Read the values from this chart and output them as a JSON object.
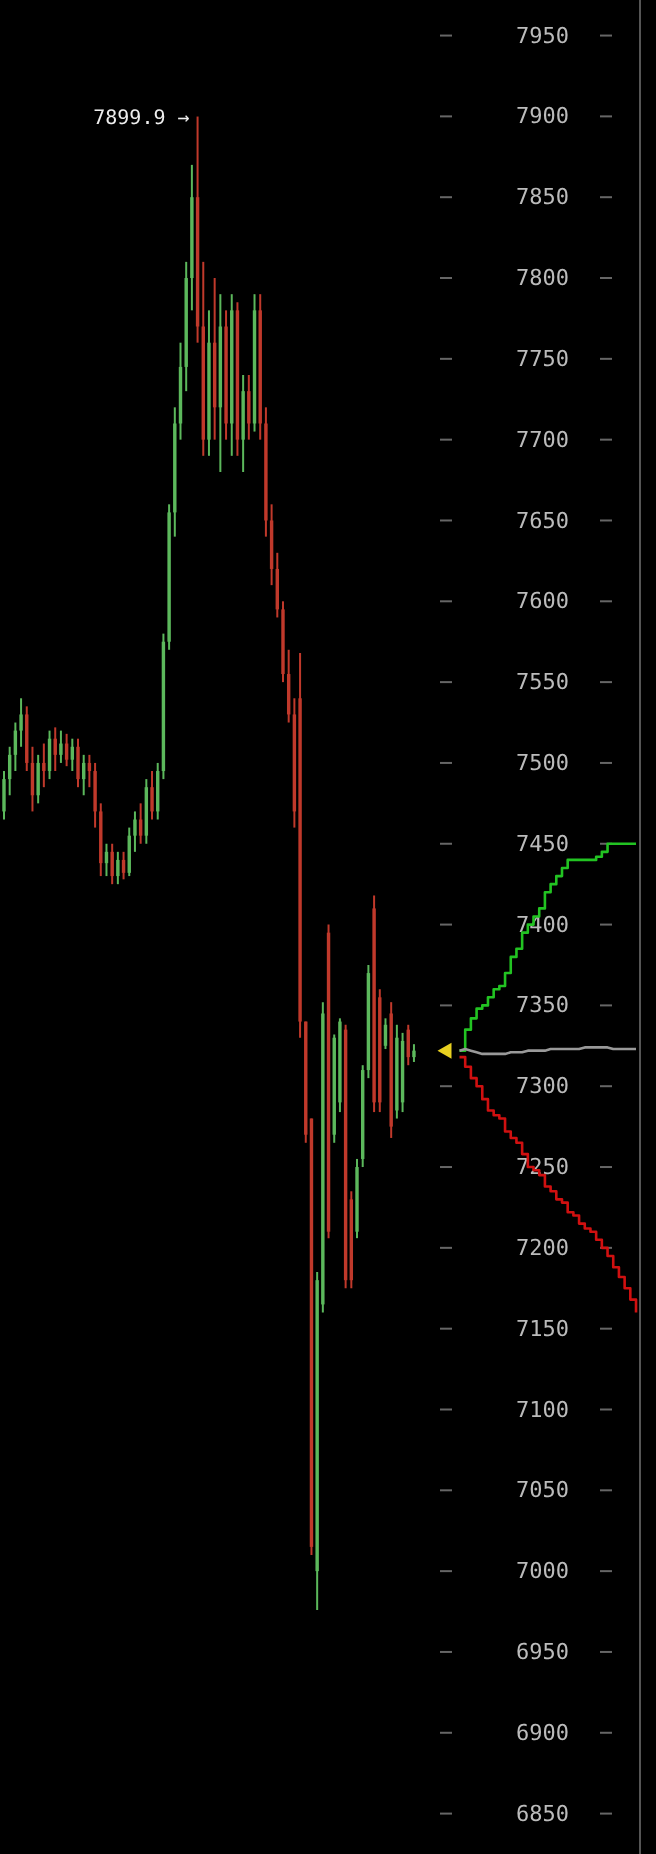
{
  "chart_data": {
    "type": "candlestick",
    "categories": [
      null,
      null,
      null,
      null,
      null,
      null,
      null,
      null,
      null,
      null,
      null,
      null,
      null,
      null,
      null,
      null,
      null,
      null,
      null,
      null,
      null,
      null,
      null,
      null,
      null,
      null,
      null,
      null,
      null,
      null,
      null,
      null,
      null,
      null,
      null,
      null,
      null,
      null,
      null,
      null,
      null,
      null,
      null,
      null,
      null,
      null,
      null,
      null,
      null,
      null,
      null,
      null,
      null,
      null,
      null,
      null,
      null,
      null,
      null,
      null,
      null,
      null,
      null,
      null,
      null,
      null,
      null,
      null,
      null,
      null,
      null,
      null,
      null,
      null,
      null,
      null,
      null,
      null,
      null,
      null,
      null,
      null,
      null,
      null,
      null,
      null,
      null,
      null,
      null,
      null,
      null,
      null,
      null,
      null,
      null,
      null,
      null,
      null,
      null,
      null,
      null,
      null,
      null,
      null,
      null,
      null,
      null,
      null,
      null,
      null,
      null,
      null
    ],
    "ohlc": [
      [
        7470,
        7495,
        7465,
        7490
      ],
      [
        7490,
        7510,
        7480,
        7505
      ],
      [
        7505,
        7525,
        7495,
        7520
      ],
      [
        7520,
        7540,
        7510,
        7530
      ],
      [
        7530,
        7535,
        7495,
        7500
      ],
      [
        7500,
        7510,
        7470,
        7480
      ],
      [
        7480,
        7505,
        7475,
        7500
      ],
      [
        7500,
        7512,
        7485,
        7495
      ],
      [
        7495,
        7520,
        7490,
        7515
      ],
      [
        7515,
        7522,
        7495,
        7505
      ],
      [
        7505,
        7520,
        7500,
        7512
      ],
      [
        7512,
        7518,
        7498,
        7502
      ],
      [
        7502,
        7515,
        7495,
        7510
      ],
      [
        7510,
        7515,
        7485,
        7490
      ],
      [
        7490,
        7505,
        7480,
        7500
      ],
      [
        7500,
        7505,
        7485,
        7495
      ],
      [
        7495,
        7500,
        7460,
        7470
      ],
      [
        7470,
        7475,
        7430,
        7438
      ],
      [
        7438,
        7450,
        7430,
        7445
      ],
      [
        7445,
        7450,
        7425,
        7430
      ],
      [
        7430,
        7445,
        7425,
        7440
      ],
      [
        7440,
        7445,
        7428,
        7432
      ],
      [
        7432,
        7460,
        7430,
        7455
      ],
      [
        7455,
        7470,
        7445,
        7465
      ],
      [
        7465,
        7475,
        7450,
        7455
      ],
      [
        7455,
        7490,
        7450,
        7485
      ],
      [
        7485,
        7495,
        7465,
        7470
      ],
      [
        7470,
        7500,
        7465,
        7495
      ],
      [
        7495,
        7580,
        7490,
        7575
      ],
      [
        7575,
        7660,
        7570,
        7655
      ],
      [
        7655,
        7720,
        7640,
        7710
      ],
      [
        7710,
        7760,
        7700,
        7745
      ],
      [
        7745,
        7810,
        7730,
        7800
      ],
      [
        7800,
        7870,
        7780,
        7850
      ],
      [
        7850,
        7899.9,
        7760,
        7770
      ],
      [
        7770,
        7810,
        7690,
        7700
      ],
      [
        7700,
        7780,
        7690,
        7760
      ],
      [
        7760,
        7800,
        7700,
        7720
      ],
      [
        7720,
        7790,
        7680,
        7770
      ],
      [
        7770,
        7780,
        7700,
        7710
      ],
      [
        7710,
        7790,
        7690,
        7780
      ],
      [
        7780,
        7785,
        7690,
        7700
      ],
      [
        7700,
        7740,
        7680,
        7730
      ],
      [
        7730,
        7740,
        7700,
        7710
      ],
      [
        7710,
        7790,
        7705,
        7780
      ],
      [
        7780,
        7790,
        7700,
        7710
      ],
      [
        7710,
        7720,
        7640,
        7650
      ],
      [
        7650,
        7660,
        7610,
        7620
      ],
      [
        7620,
        7630,
        7590,
        7595
      ],
      [
        7595,
        7600,
        7550,
        7555
      ],
      [
        7555,
        7570,
        7525,
        7530
      ],
      [
        7530,
        7540,
        7460,
        7470
      ],
      [
        7540,
        7568,
        7330,
        7340
      ],
      [
        7340,
        7340,
        7265,
        7270
      ],
      [
        7280,
        7280,
        7010,
        7015
      ],
      [
        7000,
        7185,
        6976,
        7180
      ],
      [
        7165,
        7352,
        7160,
        7345
      ],
      [
        7395,
        7400,
        7206,
        7210
      ],
      [
        7270,
        7332,
        7265,
        7330
      ],
      [
        7290,
        7342,
        7284,
        7340
      ],
      [
        7335,
        7338,
        7175,
        7180
      ],
      [
        7230,
        7235,
        7175,
        7180
      ],
      [
        7210,
        7255,
        7206,
        7250
      ],
      [
        7255,
        7313,
        7250,
        7310
      ],
      [
        7310,
        7375,
        7305,
        7370
      ],
      [
        7410,
        7418,
        7284,
        7290
      ],
      [
        7355,
        7360,
        7284,
        7290
      ],
      [
        7325,
        7342,
        7323,
        7338
      ],
      [
        7345,
        7352,
        7268,
        7275
      ],
      [
        7285,
        7338,
        7280,
        7330
      ],
      [
        7290,
        7333,
        7284,
        7328
      ],
      [
        7335,
        7338,
        7313,
        7318
      ],
      [
        7318,
        7326,
        7315,
        7322
      ],
      null,
      null,
      null,
      null,
      null,
      null,
      null,
      null,
      null,
      null,
      null,
      null,
      null,
      null,
      null,
      null,
      null,
      null,
      null,
      null,
      null,
      null,
      null,
      null,
      null,
      null,
      null,
      null,
      null,
      null,
      null,
      null,
      null,
      null,
      null,
      null,
      null,
      null,
      null
    ],
    "colors": [
      "#5cb85c",
      "#5cb85c",
      "#5cb85c",
      "#5cb85c",
      "#c0392b",
      "#c0392b",
      "#5cb85c",
      "#c0392b",
      "#5cb85c",
      "#c0392b",
      "#5cb85c",
      "#c0392b",
      "#5cb85c",
      "#c0392b",
      "#5cb85c",
      "#c0392b",
      "#c0392b",
      "#c0392b",
      "#5cb85c",
      "#c0392b",
      "#5cb85c",
      "#c0392b",
      "#5cb85c",
      "#5cb85c",
      "#c0392b",
      "#5cb85c",
      "#c0392b",
      "#5cb85c",
      "#5cb85c",
      "#5cb85c",
      "#5cb85c",
      "#5cb85c",
      "#5cb85c",
      "#5cb85c",
      "#c0392b",
      "#c0392b",
      "#5cb85c",
      "#c0392b",
      "#5cb85c",
      "#c0392b",
      "#5cb85c",
      "#c0392b",
      "#5cb85c",
      "#c0392b",
      "#5cb85c",
      "#c0392b",
      "#c0392b",
      "#c0392b",
      "#c0392b",
      "#c0392b",
      "#c0392b",
      "#c0392b",
      "#c0392b",
      "#c0392b",
      "#c0392b",
      "#5cb85c",
      "#5cb85c",
      "#c0392b",
      "#5cb85c",
      "#5cb85c",
      "#c0392b",
      "#c0392b",
      "#5cb85c",
      "#5cb85c",
      "#5cb85c",
      "#c0392b",
      "#c0392b",
      "#5cb85c",
      "#c0392b",
      "#5cb85c",
      "#5cb85c",
      "#c0392b",
      "#5cb85c",
      null,
      null,
      null,
      null,
      null,
      null,
      null,
      null,
      null,
      null,
      null,
      null,
      null,
      null,
      null,
      null,
      null,
      null,
      null,
      null,
      null,
      null,
      null,
      null,
      null,
      null,
      null,
      null,
      null,
      null,
      null,
      null,
      null,
      null,
      null,
      null,
      null,
      null,
      null
    ],
    "series": [
      {
        "type": "step",
        "color": "#22c322",
        "values": [
          null,
          null,
          null,
          null,
          null,
          null,
          null,
          null,
          null,
          null,
          null,
          null,
          null,
          null,
          null,
          null,
          null,
          null,
          null,
          null,
          null,
          null,
          null,
          null,
          null,
          null,
          null,
          null,
          null,
          null,
          null,
          null,
          null,
          null,
          null,
          null,
          null,
          null,
          null,
          null,
          null,
          null,
          null,
          null,
          null,
          null,
          null,
          null,
          null,
          null,
          null,
          null,
          null,
          null,
          null,
          null,
          null,
          null,
          null,
          null,
          null,
          null,
          null,
          null,
          null,
          null,
          null,
          null,
          null,
          null,
          null,
          null,
          null,
          null,
          null,
          null,
          null,
          null,
          null,
          null,
          7322,
          7335,
          7342,
          7348,
          7350,
          7355,
          7360,
          7362,
          7370,
          7380,
          7385,
          7395,
          7400,
          7405,
          7410,
          7420,
          7425,
          7430,
          7435,
          7440,
          7440,
          7440,
          7440,
          7440,
          7442,
          7445,
          7450,
          7450,
          7450,
          7450,
          7450,
          7450
        ]
      },
      {
        "type": "line",
        "color": "#999999",
        "values": [
          null,
          null,
          null,
          null,
          null,
          null,
          null,
          null,
          null,
          null,
          null,
          null,
          null,
          null,
          null,
          null,
          null,
          null,
          null,
          null,
          null,
          null,
          null,
          null,
          null,
          null,
          null,
          null,
          null,
          null,
          null,
          null,
          null,
          null,
          null,
          null,
          null,
          null,
          null,
          null,
          null,
          null,
          null,
          null,
          null,
          null,
          null,
          null,
          null,
          null,
          null,
          null,
          null,
          null,
          null,
          null,
          null,
          null,
          null,
          null,
          null,
          null,
          null,
          null,
          null,
          null,
          null,
          null,
          null,
          null,
          null,
          null,
          null,
          null,
          null,
          null,
          null,
          null,
          null,
          null,
          7322,
          7323,
          7322,
          7321,
          7320,
          7320,
          7320,
          7320,
          7320,
          7321,
          7321,
          7321,
          7322,
          7322,
          7322,
          7322,
          7323,
          7323,
          7323,
          7323,
          7323,
          7323,
          7324,
          7324,
          7324,
          7324,
          7324,
          7323,
          7323,
          7323,
          7323,
          7323
        ]
      },
      {
        "type": "step",
        "color": "#d01010",
        "values": [
          null,
          null,
          null,
          null,
          null,
          null,
          null,
          null,
          null,
          null,
          null,
          null,
          null,
          null,
          null,
          null,
          null,
          null,
          null,
          null,
          null,
          null,
          null,
          null,
          null,
          null,
          null,
          null,
          null,
          null,
          null,
          null,
          null,
          null,
          null,
          null,
          null,
          null,
          null,
          null,
          null,
          null,
          null,
          null,
          null,
          null,
          null,
          null,
          null,
          null,
          null,
          null,
          null,
          null,
          null,
          null,
          null,
          null,
          null,
          null,
          null,
          null,
          null,
          null,
          null,
          null,
          null,
          null,
          null,
          null,
          null,
          null,
          null,
          null,
          null,
          null,
          null,
          null,
          null,
          null,
          7318,
          7312,
          7305,
          7300,
          7292,
          7285,
          7282,
          7280,
          7272,
          7268,
          7265,
          7258,
          7250,
          7248,
          7245,
          7238,
          7235,
          7230,
          7228,
          7222,
          7220,
          7215,
          7212,
          7210,
          7205,
          7200,
          7195,
          7188,
          7182,
          7175,
          7168,
          7160
        ]
      }
    ],
    "annotations": [
      "7899.9 →"
    ],
    "ylim": [
      6825,
      7972
    ],
    "yticks": [
      6850,
      6900,
      6950,
      7000,
      7050,
      7100,
      7150,
      7200,
      7250,
      7300,
      7350,
      7400,
      7450,
      7500,
      7550,
      7600,
      7650,
      7700,
      7750,
      7800,
      7850,
      7900,
      7950
    ]
  }
}
